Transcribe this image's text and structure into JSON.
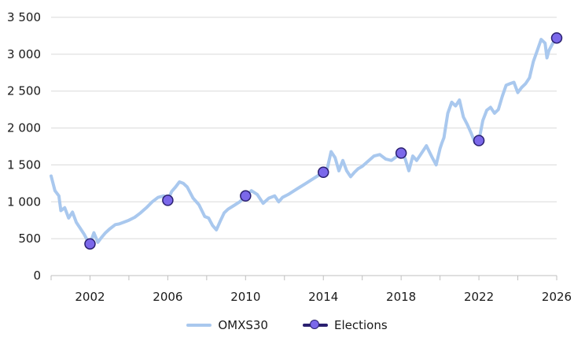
{
  "chart_data": {
    "type": "line",
    "title": "",
    "xlabel": "",
    "ylabel": "",
    "xlim": [
      2000,
      2026
    ],
    "ylim": [
      0,
      3500
    ],
    "x_ticks": [
      2002,
      2006,
      2010,
      2014,
      2018,
      2022,
      2026
    ],
    "x_tick_labels": [
      "2002",
      "2006",
      "2010",
      "2014",
      "2018",
      "2022",
      "2026"
    ],
    "y_ticks": [
      0,
      500,
      1000,
      1500,
      2000,
      2500,
      3000,
      3500
    ],
    "y_tick_labels": [
      "0",
      "500",
      "1 000",
      "1 500",
      "2 000",
      "2 500",
      "3 000",
      "3 500"
    ],
    "grid": "horizontal",
    "legend_position": "bottom",
    "series": [
      {
        "name": "OMXS30",
        "color": "#a9c8ee",
        "x": [
          2000.0,
          2000.2,
          2000.4,
          2000.5,
          2000.7,
          2000.9,
          2001.1,
          2001.3,
          2001.5,
          2001.7,
          2001.9,
          2002.0,
          2002.2,
          2002.4,
          2002.6,
          2002.8,
          2003.0,
          2003.3,
          2003.5,
          2003.8,
          2004.0,
          2004.3,
          2004.6,
          2004.9,
          2005.2,
          2005.5,
          2005.8,
          2006.0,
          2006.2,
          2006.4,
          2006.6,
          2006.8,
          2007.0,
          2007.3,
          2007.6,
          2007.9,
          2008.1,
          2008.3,
          2008.5,
          2008.7,
          2008.9,
          2009.1,
          2009.4,
          2009.7,
          2010.0,
          2010.3,
          2010.6,
          2010.9,
          2011.2,
          2011.5,
          2011.7,
          2011.9,
          2012.2,
          2012.5,
          2012.8,
          2013.1,
          2013.4,
          2013.7,
          2014.0,
          2014.2,
          2014.4,
          2014.6,
          2014.8,
          2015.0,
          2015.2,
          2015.4,
          2015.6,
          2015.8,
          2016.0,
          2016.3,
          2016.6,
          2016.9,
          2017.2,
          2017.5,
          2017.8,
          2018.0,
          2018.2,
          2018.4,
          2018.6,
          2018.8,
          2019.0,
          2019.3,
          2019.6,
          2019.8,
          2020.0,
          2020.1,
          2020.2,
          2020.4,
          2020.6,
          2020.8,
          2021.0,
          2021.2,
          2021.4,
          2021.6,
          2021.8,
          2022.0,
          2022.2,
          2022.4,
          2022.6,
          2022.8,
          2023.0,
          2023.2,
          2023.4,
          2023.6,
          2023.8,
          2024.0,
          2024.2,
          2024.4,
          2024.6,
          2024.8,
          2025.0,
          2025.2,
          2025.4,
          2025.5,
          2025.6,
          2025.8,
          2026.0
        ],
        "values": [
          1350,
          1150,
          1080,
          880,
          920,
          780,
          860,
          720,
          640,
          560,
          460,
          430,
          580,
          450,
          520,
          580,
          630,
          690,
          700,
          730,
          750,
          790,
          850,
          920,
          1000,
          1060,
          1080,
          1020,
          1140,
          1200,
          1270,
          1250,
          1200,
          1050,
          960,
          800,
          780,
          680,
          620,
          740,
          850,
          900,
          950,
          1000,
          1080,
          1150,
          1100,
          980,
          1050,
          1080,
          1000,
          1060,
          1100,
          1150,
          1200,
          1250,
          1300,
          1350,
          1400,
          1450,
          1680,
          1600,
          1420,
          1560,
          1420,
          1340,
          1400,
          1450,
          1480,
          1550,
          1620,
          1640,
          1580,
          1560,
          1620,
          1640,
          1590,
          1420,
          1620,
          1560,
          1640,
          1760,
          1600,
          1500,
          1720,
          1800,
          1870,
          2200,
          2350,
          2300,
          2380,
          2150,
          2050,
          1930,
          1800,
          1830,
          2100,
          2240,
          2280,
          2200,
          2250,
          2430,
          2580,
          2600,
          2620,
          2480,
          2550,
          2600,
          2680,
          2900,
          3050,
          3200,
          3150,
          2950,
          3050,
          3150,
          3220
        ]
      },
      {
        "name": "Elections",
        "color": "#7b68ea",
        "edge_color": "#2a2070",
        "x": [
          2002.0,
          2006.0,
          2010.0,
          2014.0,
          2018.0,
          2022.0,
          2026.0
        ],
        "values": [
          430,
          1020,
          1080,
          1400,
          1660,
          1830,
          3220
        ]
      }
    ]
  }
}
